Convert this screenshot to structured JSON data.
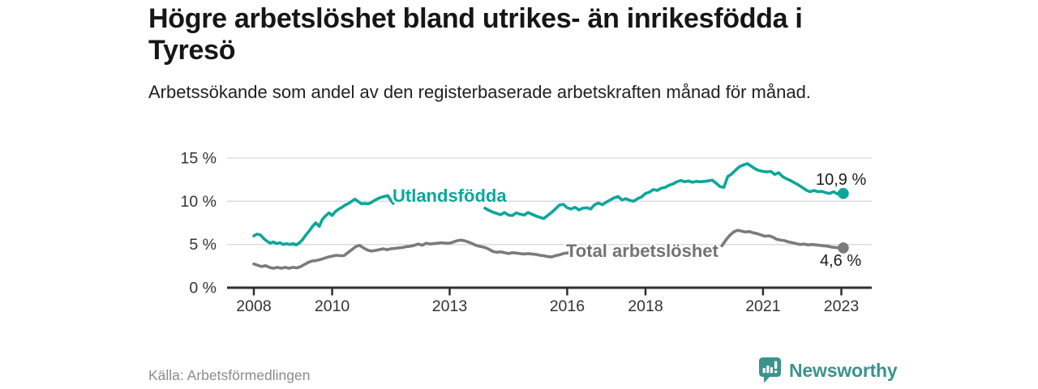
{
  "header": {
    "title": "Högre arbetslöshet bland utrikes- än inrikesfödda i Tyresö",
    "subtitle": "Arbetssökande som andel av den registerbaserade arbetskraften månad för månad."
  },
  "footer": {
    "source": "Källa: Arbetsförmedlingen",
    "brand": "Newsworthy",
    "brand_icon": "speech-bubble-bar-chart-icon"
  },
  "colors": {
    "accent_teal": "#0ba79a",
    "series_gray": "#7b7b7b",
    "grid": "#d9d9d9",
    "axis": "#2f2f2f",
    "tick_text": "#333333",
    "brand_teal": "#3b938d"
  },
  "chart_data": {
    "type": "line",
    "title": "Högre arbetslöshet bland utrikes- än inrikesfödda i Tyresö",
    "subtitle": "Arbetssökande som andel av den registerbaserade arbetskraften månad för månad.",
    "xlabel": "",
    "ylabel": "",
    "grid": "horizontal",
    "legend_position": "inline-labels",
    "x_axis": {
      "range": [
        2007.3,
        2023.8
      ],
      "ticks": [
        2008,
        2010,
        2013,
        2016,
        2018,
        2021,
        2023
      ],
      "tick_labels": [
        "2008",
        "2010",
        "2013",
        "2016",
        "2018",
        "2021",
        "2023"
      ]
    },
    "y_axis": {
      "range": [
        0,
        15
      ],
      "unit": "%",
      "ticks": [
        0,
        5,
        10,
        15
      ],
      "tick_labels": [
        "0 %",
        "5 %",
        "10 %",
        "15 %"
      ]
    },
    "series": [
      {
        "name": "Utlandsfödda",
        "color": "#0ba79a",
        "end_label": "10,9 %",
        "end_point": {
          "year": 2023.05,
          "value": 10.9
        },
        "segments": [
          [
            [
              2008.0,
              6.0
            ],
            [
              2008.08,
              6.2
            ],
            [
              2008.17,
              6.1
            ],
            [
              2008.25,
              5.7
            ],
            [
              2008.33,
              5.4
            ],
            [
              2008.42,
              5.15
            ],
            [
              2008.5,
              5.3
            ],
            [
              2008.58,
              5.1
            ],
            [
              2008.67,
              5.2
            ],
            [
              2008.75,
              5.0
            ],
            [
              2008.83,
              5.1
            ],
            [
              2008.92,
              5.0
            ],
            [
              2009.0,
              5.1
            ],
            [
              2009.08,
              4.95
            ],
            [
              2009.17,
              5.2
            ],
            [
              2009.25,
              5.6
            ],
            [
              2009.33,
              6.1
            ],
            [
              2009.42,
              6.6
            ],
            [
              2009.5,
              7.1
            ],
            [
              2009.58,
              7.5
            ],
            [
              2009.67,
              7.1
            ],
            [
              2009.75,
              7.9
            ],
            [
              2009.83,
              8.3
            ],
            [
              2009.92,
              8.65
            ],
            [
              2010.0,
              8.35
            ],
            [
              2010.08,
              8.8
            ],
            [
              2010.17,
              9.1
            ],
            [
              2010.25,
              9.3
            ],
            [
              2010.33,
              9.55
            ],
            [
              2010.42,
              9.75
            ],
            [
              2010.5,
              10.0
            ],
            [
              2010.58,
              10.25
            ],
            [
              2010.67,
              9.95
            ],
            [
              2010.75,
              9.7
            ],
            [
              2010.83,
              9.75
            ],
            [
              2010.92,
              9.7
            ],
            [
              2011.0,
              9.85
            ],
            [
              2011.08,
              10.1
            ],
            [
              2011.17,
              10.3
            ],
            [
              2011.25,
              10.45
            ],
            [
              2011.33,
              10.55
            ],
            [
              2011.42,
              10.65
            ],
            [
              2011.5,
              10.1
            ],
            [
              2011.56,
              9.75
            ]
          ],
          [
            [
              2013.9,
              9.2
            ],
            [
              2014.0,
              8.95
            ],
            [
              2014.1,
              8.75
            ],
            [
              2014.2,
              8.6
            ],
            [
              2014.3,
              8.45
            ],
            [
              2014.4,
              8.7
            ],
            [
              2014.5,
              8.4
            ],
            [
              2014.6,
              8.35
            ],
            [
              2014.7,
              8.65
            ],
            [
              2014.8,
              8.5
            ],
            [
              2014.9,
              8.4
            ],
            [
              2015.0,
              8.7
            ],
            [
              2015.1,
              8.5
            ],
            [
              2015.2,
              8.3
            ],
            [
              2015.3,
              8.15
            ],
            [
              2015.4,
              8.0
            ],
            [
              2015.5,
              8.35
            ],
            [
              2015.6,
              8.7
            ],
            [
              2015.7,
              9.1
            ],
            [
              2015.8,
              9.55
            ],
            [
              2015.9,
              9.65
            ],
            [
              2016.0,
              9.25
            ],
            [
              2016.1,
              9.1
            ],
            [
              2016.2,
              9.3
            ],
            [
              2016.3,
              9.0
            ],
            [
              2016.4,
              9.2
            ],
            [
              2016.5,
              9.25
            ],
            [
              2016.6,
              9.1
            ],
            [
              2016.7,
              9.6
            ],
            [
              2016.8,
              9.8
            ],
            [
              2016.9,
              9.6
            ],
            [
              2017.0,
              9.9
            ],
            [
              2017.1,
              10.15
            ],
            [
              2017.2,
              10.4
            ],
            [
              2017.3,
              10.55
            ],
            [
              2017.4,
              10.15
            ],
            [
              2017.5,
              10.3
            ],
            [
              2017.6,
              10.1
            ],
            [
              2017.7,
              10.0
            ],
            [
              2017.8,
              10.3
            ],
            [
              2017.9,
              10.5
            ],
            [
              2018.0,
              10.9
            ],
            [
              2018.1,
              11.05
            ],
            [
              2018.2,
              11.35
            ],
            [
              2018.3,
              11.25
            ],
            [
              2018.4,
              11.5
            ],
            [
              2018.5,
              11.6
            ],
            [
              2018.6,
              11.85
            ],
            [
              2018.7,
              12.0
            ],
            [
              2018.8,
              12.25
            ],
            [
              2018.9,
              12.4
            ],
            [
              2019.0,
              12.25
            ],
            [
              2019.1,
              12.35
            ],
            [
              2019.2,
              12.2
            ],
            [
              2019.3,
              12.3
            ],
            [
              2019.4,
              12.25
            ],
            [
              2019.5,
              12.3
            ],
            [
              2019.6,
              12.35
            ],
            [
              2019.7,
              12.45
            ],
            [
              2019.8,
              12.1
            ],
            [
              2019.9,
              11.7
            ],
            [
              2020.0,
              11.6
            ],
            [
              2020.1,
              12.85
            ],
            [
              2020.2,
              13.15
            ],
            [
              2020.3,
              13.6
            ],
            [
              2020.4,
              14.0
            ],
            [
              2020.5,
              14.2
            ],
            [
              2020.6,
              14.35
            ],
            [
              2020.7,
              14.05
            ],
            [
              2020.8,
              13.75
            ],
            [
              2020.9,
              13.55
            ],
            [
              2021.0,
              13.45
            ],
            [
              2021.1,
              13.4
            ],
            [
              2021.2,
              13.45
            ],
            [
              2021.3,
              13.1
            ],
            [
              2021.4,
              13.3
            ],
            [
              2021.5,
              12.85
            ],
            [
              2021.6,
              12.6
            ],
            [
              2021.7,
              12.4
            ],
            [
              2021.8,
              12.15
            ],
            [
              2021.9,
              11.9
            ],
            [
              2022.0,
              11.6
            ],
            [
              2022.1,
              11.3
            ],
            [
              2022.2,
              11.1
            ],
            [
              2022.3,
              11.25
            ],
            [
              2022.4,
              11.1
            ],
            [
              2022.5,
              11.15
            ],
            [
              2022.6,
              11.0
            ],
            [
              2022.7,
              10.9
            ],
            [
              2022.8,
              11.1
            ],
            [
              2022.9,
              10.85
            ],
            [
              2022.97,
              11.15
            ],
            [
              2023.05,
              10.9
            ]
          ]
        ]
      },
      {
        "name": "Total arbetslöshet",
        "color": "#7b7b7b",
        "end_label": "4,6 %",
        "end_point": {
          "year": 2023.05,
          "value": 4.6
        },
        "segments": [
          [
            [
              2008.0,
              2.75
            ],
            [
              2008.1,
              2.6
            ],
            [
              2008.2,
              2.45
            ],
            [
              2008.3,
              2.55
            ],
            [
              2008.4,
              2.35
            ],
            [
              2008.5,
              2.25
            ],
            [
              2008.6,
              2.35
            ],
            [
              2008.7,
              2.25
            ],
            [
              2008.8,
              2.35
            ],
            [
              2008.9,
              2.25
            ],
            [
              2009.0,
              2.35
            ],
            [
              2009.1,
              2.3
            ],
            [
              2009.2,
              2.45
            ],
            [
              2009.3,
              2.7
            ],
            [
              2009.4,
              2.95
            ],
            [
              2009.5,
              3.1
            ],
            [
              2009.6,
              3.15
            ],
            [
              2009.7,
              3.25
            ],
            [
              2009.8,
              3.4
            ],
            [
              2009.9,
              3.55
            ],
            [
              2010.0,
              3.65
            ],
            [
              2010.1,
              3.75
            ],
            [
              2010.2,
              3.7
            ],
            [
              2010.3,
              3.7
            ],
            [
              2010.4,
              4.05
            ],
            [
              2010.5,
              4.4
            ],
            [
              2010.6,
              4.75
            ],
            [
              2010.7,
              4.9
            ],
            [
              2010.8,
              4.6
            ],
            [
              2010.9,
              4.35
            ],
            [
              2011.0,
              4.25
            ],
            [
              2011.1,
              4.3
            ],
            [
              2011.2,
              4.4
            ],
            [
              2011.3,
              4.5
            ],
            [
              2011.4,
              4.4
            ],
            [
              2011.5,
              4.5
            ],
            [
              2011.6,
              4.55
            ],
            [
              2011.7,
              4.6
            ],
            [
              2011.8,
              4.65
            ],
            [
              2011.9,
              4.75
            ],
            [
              2012.0,
              4.8
            ],
            [
              2012.1,
              4.9
            ],
            [
              2012.2,
              5.05
            ],
            [
              2012.3,
              4.9
            ],
            [
              2012.4,
              5.15
            ],
            [
              2012.5,
              5.05
            ],
            [
              2012.6,
              5.1
            ],
            [
              2012.7,
              5.15
            ],
            [
              2012.8,
              5.2
            ],
            [
              2012.9,
              5.15
            ],
            [
              2013.0,
              5.15
            ],
            [
              2013.1,
              5.3
            ],
            [
              2013.2,
              5.45
            ],
            [
              2013.3,
              5.5
            ],
            [
              2013.4,
              5.4
            ],
            [
              2013.5,
              5.25
            ],
            [
              2013.6,
              5.05
            ],
            [
              2013.7,
              4.85
            ],
            [
              2013.8,
              4.75
            ],
            [
              2013.9,
              4.65
            ],
            [
              2014.0,
              4.45
            ],
            [
              2014.1,
              4.2
            ],
            [
              2014.2,
              4.1
            ],
            [
              2014.3,
              4.15
            ],
            [
              2014.4,
              4.05
            ],
            [
              2014.5,
              3.95
            ],
            [
              2014.6,
              4.05
            ],
            [
              2014.7,
              4.0
            ],
            [
              2014.8,
              3.95
            ],
            [
              2014.9,
              3.9
            ],
            [
              2015.0,
              3.95
            ],
            [
              2015.1,
              3.9
            ],
            [
              2015.2,
              3.85
            ],
            [
              2015.3,
              3.75
            ],
            [
              2015.4,
              3.7
            ],
            [
              2015.5,
              3.6
            ],
            [
              2015.6,
              3.55
            ],
            [
              2015.7,
              3.7
            ],
            [
              2015.8,
              3.8
            ],
            [
              2015.9,
              3.95
            ],
            [
              2016.05,
              4.05
            ]
          ],
          [
            [
              2019.95,
              4.85
            ],
            [
              2020.05,
              5.5
            ],
            [
              2020.15,
              6.05
            ],
            [
              2020.25,
              6.45
            ],
            [
              2020.35,
              6.65
            ],
            [
              2020.45,
              6.55
            ],
            [
              2020.55,
              6.45
            ],
            [
              2020.65,
              6.5
            ],
            [
              2020.75,
              6.35
            ],
            [
              2020.85,
              6.25
            ],
            [
              2020.95,
              6.1
            ],
            [
              2021.05,
              5.95
            ],
            [
              2021.15,
              6.0
            ],
            [
              2021.25,
              5.85
            ],
            [
              2021.35,
              5.6
            ],
            [
              2021.45,
              5.5
            ],
            [
              2021.55,
              5.45
            ],
            [
              2021.65,
              5.3
            ],
            [
              2021.75,
              5.2
            ],
            [
              2021.85,
              5.1
            ],
            [
              2021.95,
              5.0
            ],
            [
              2022.05,
              5.05
            ],
            [
              2022.15,
              4.95
            ],
            [
              2022.25,
              5.0
            ],
            [
              2022.35,
              4.95
            ],
            [
              2022.45,
              4.9
            ],
            [
              2022.55,
              4.85
            ],
            [
              2022.65,
              4.8
            ],
            [
              2022.75,
              4.7
            ],
            [
              2022.85,
              4.65
            ],
            [
              2022.95,
              4.6
            ],
            [
              2023.05,
              4.6
            ]
          ]
        ]
      }
    ]
  }
}
